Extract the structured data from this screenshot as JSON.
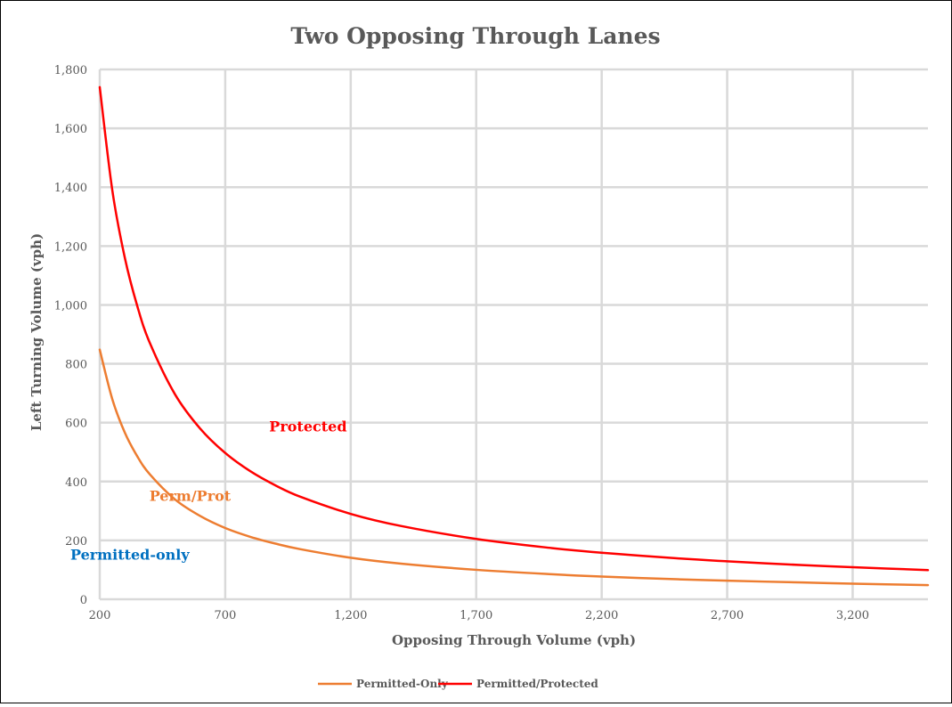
{
  "chart_data": {
    "type": "line",
    "title": "Two Opposing Through Lanes",
    "xlabel": "Opposing Through Volume (vph)",
    "ylabel": "Left Turning Volume (vph)",
    "xlim": [
      200,
      3500
    ],
    "ylim": [
      0,
      1800
    ],
    "x_ticks": [
      200,
      700,
      1200,
      1700,
      2200,
      2700,
      3200
    ],
    "x_tick_labels": [
      "200",
      "700",
      "1,200",
      "1,700",
      "2,200",
      "2,700",
      "3,200"
    ],
    "y_ticks": [
      0,
      200,
      400,
      600,
      800,
      1000,
      1200,
      1400,
      1600,
      1800
    ],
    "y_tick_labels": [
      "0",
      "200",
      "400",
      "600",
      "800",
      "1,000",
      "1,200",
      "1,400",
      "1,600",
      "1,800"
    ],
    "grid": true,
    "legend_position": "bottom",
    "series": [
      {
        "name": "Permitted-Only",
        "color": "#ed7d31",
        "x": [
          200,
          250,
          300,
          350,
          400,
          500,
          600,
          700,
          800,
          900,
          1000,
          1200,
          1400,
          1700,
          2000,
          2200,
          2500,
          2700,
          3000,
          3200,
          3500
        ],
        "y": [
          848,
          680,
          566,
          485,
          424,
          339,
          283,
          242,
          212,
          189,
          170,
          141,
          121,
          100,
          85,
          77,
          68,
          63,
          57,
          53,
          48
        ]
      },
      {
        "name": "Permitted/Protected",
        "color": "#ff0000",
        "x": [
          200,
          250,
          300,
          350,
          400,
          500,
          600,
          700,
          800,
          900,
          1000,
          1200,
          1400,
          1700,
          2000,
          2200,
          2500,
          2700,
          3000,
          3200,
          3500
        ],
        "y": [
          1740,
          1390,
          1160,
          995,
          870,
          696,
          580,
          497,
          435,
          387,
          348,
          290,
          249,
          205,
          174,
          158,
          139,
          129,
          116,
          109,
          99
        ]
      }
    ],
    "annotations": [
      {
        "text": "Protected",
        "color": "#ff0000",
        "x": 1030,
        "y": 570
      },
      {
        "text": "Perm/Prot",
        "color": "#ed7d31",
        "x": 560,
        "y": 335
      },
      {
        "text": "Permitted-only",
        "color": "#0070c0",
        "x": 320,
        "y": 135
      }
    ]
  }
}
